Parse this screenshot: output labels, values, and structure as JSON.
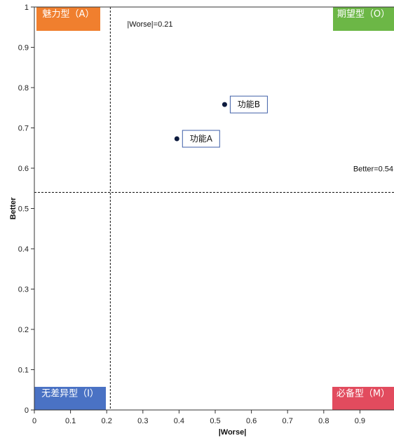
{
  "chart_data": {
    "type": "scatter",
    "title": "",
    "xlabel": "|Worse|",
    "ylabel": "Better",
    "xlim": [
      0,
      1
    ],
    "ylim": [
      0,
      1
    ],
    "x_ticks": [
      0,
      0.1,
      0.2,
      0.3,
      0.4,
      0.5,
      0.6,
      0.7,
      0.8,
      0.9
    ],
    "x_tick_labels": [
      "0",
      "0.1",
      "0.2",
      "0.3",
      "0.4",
      "0.5",
      "0.6",
      "0.7",
      "0.8",
      "0.9"
    ],
    "y_ticks": [
      0,
      0.1,
      0.2,
      0.3,
      0.4,
      0.5,
      0.6,
      0.7,
      0.8,
      0.9,
      1
    ],
    "y_tick_labels": [
      "0",
      "0.1",
      "0.2",
      "0.3",
      "0.4",
      "0.5",
      "0.6",
      "0.7",
      "0.8",
      "0.9",
      "1"
    ],
    "grid": false,
    "points": [
      {
        "label": "功能A",
        "x": 0.394,
        "y": 0.673
      },
      {
        "label": "功能B",
        "x": 0.526,
        "y": 0.758
      }
    ],
    "reference_lines": {
      "x": {
        "value": 0.21,
        "label": "|Worse|=0.21"
      },
      "y": {
        "value": 0.54,
        "label": "Better=0.54"
      }
    },
    "quadrants": [
      {
        "label": "魅力型（A）",
        "position": "top-left",
        "color": "#f07f2e"
      },
      {
        "label": "期望型（O）",
        "position": "top-right",
        "color": "#6cb746"
      },
      {
        "label": "无差异型（I）",
        "position": "bottom-left",
        "color": "#4a72c4"
      },
      {
        "label": "必备型（M）",
        "position": "bottom-right",
        "color": "#e24b5e"
      }
    ],
    "colors": {
      "point": "#0d1b3e",
      "label_border": "#3f5fa8",
      "axis": "#333333"
    }
  }
}
